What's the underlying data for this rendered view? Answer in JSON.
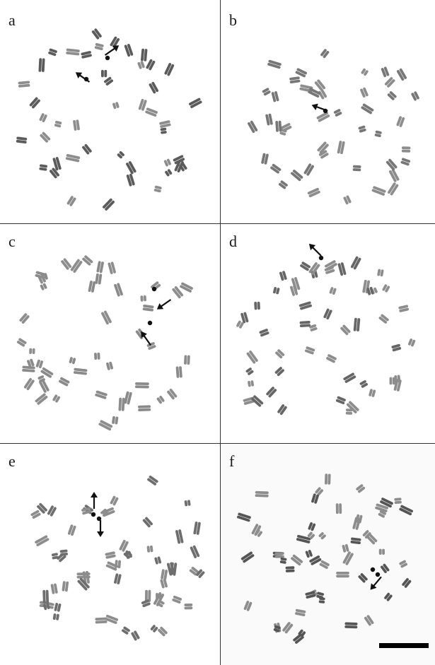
{
  "figure": {
    "panels": [
      {
        "label": "a",
        "arrows": 2,
        "tone": "#5b5b5b",
        "bg": "#ffffff"
      },
      {
        "label": "b",
        "arrows": 1,
        "tone": "#777777",
        "bg": "#ffffff"
      },
      {
        "label": "c",
        "arrows": 2,
        "tone": "#8a8a8a",
        "bg": "#ffffff"
      },
      {
        "label": "d",
        "arrows": 1,
        "tone": "#666666",
        "bg": "#ffffff"
      },
      {
        "label": "e",
        "arrows": 2,
        "tone": "#6e6e6e",
        "bg": "#ffffff"
      },
      {
        "label": "f",
        "arrows": 1,
        "tone": "#555555",
        "bg": "#fafafa"
      }
    ],
    "scale_bar": {
      "panel": "f"
    },
    "colors": {
      "divider": "#333333",
      "arrow": "#111111",
      "signal": "#111111"
    }
  }
}
